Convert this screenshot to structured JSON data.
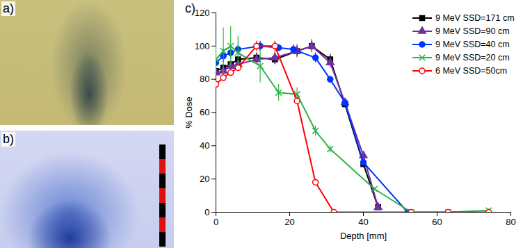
{
  "panels": [
    {
      "label": "a)"
    },
    {
      "label": "b)"
    }
  ],
  "chart_data": {
    "type": "line",
    "title": "c)",
    "x_label": "Depth [mm]",
    "y_label": "% Dose",
    "xlim": [
      0,
      80
    ],
    "xticks": [
      0,
      20,
      40,
      60,
      80
    ],
    "ylim": [
      0,
      120
    ],
    "yticks": [
      0,
      20,
      40,
      60,
      80,
      100,
      120
    ],
    "grid": false,
    "legend": "top-right",
    "series": [
      {
        "name": "9 MeV SSD=171 cm",
        "color": "#000000",
        "marker": "square",
        "x": [
          0,
          2,
          4,
          6,
          11,
          16,
          22,
          26,
          31,
          35,
          40,
          44
        ],
        "values": [
          85,
          87,
          89,
          92,
          93,
          92,
          97,
          100,
          92,
          65,
          29,
          3
        ],
        "errors": [
          2,
          2,
          2,
          2,
          3,
          3,
          3,
          3,
          3,
          2,
          2,
          1
        ]
      },
      {
        "name": "9 MeV SSD=90 cm",
        "color": "#7030a0",
        "marker": "triangle",
        "x": [
          0,
          2,
          4,
          6,
          11,
          16,
          22,
          26,
          31,
          35,
          40,
          44
        ],
        "values": [
          84,
          85,
          88,
          89,
          92,
          93,
          97,
          100,
          90,
          66,
          34,
          3
        ],
        "errors": [
          2,
          2,
          2,
          2,
          3,
          4,
          4,
          4,
          3,
          2,
          2,
          1
        ]
      },
      {
        "name": "9 MeV SSD=40 cm",
        "color": "#0033ff",
        "marker": "circle",
        "x": [
          0,
          2,
          4,
          6,
          12,
          17,
          21,
          27,
          31,
          35,
          40,
          52
        ],
        "values": [
          90,
          94,
          96,
          98,
          100,
          99,
          98,
          93,
          80,
          66,
          30,
          0
        ],
        "errors": [
          3,
          4,
          4,
          3,
          3,
          2,
          3,
          3,
          2,
          2,
          1,
          0
        ]
      },
      {
        "name": "9 MeV SSD=20 cm",
        "color": "#2db34a",
        "marker": "x",
        "x": [
          0,
          2,
          4,
          6,
          12,
          17,
          22,
          27,
          31,
          43,
          53,
          63,
          74
        ],
        "values": [
          92,
          97,
          100,
          96,
          88,
          72,
          71,
          49,
          38,
          14,
          0,
          0,
          1
        ],
        "errors": [
          8,
          14,
          12,
          10,
          10,
          5,
          4,
          3,
          2,
          1,
          0,
          0,
          1
        ]
      },
      {
        "name": "6 MeV SSD=50cm",
        "color": "#ff0000",
        "marker": "open_circle",
        "x": [
          0,
          2,
          4,
          6,
          11,
          16,
          22,
          27,
          32,
          53,
          63,
          74
        ],
        "values": [
          77,
          81,
          84,
          87,
          100,
          100,
          67,
          18,
          0,
          0,
          0,
          0
        ],
        "errors": [
          2,
          2,
          2,
          2,
          3,
          3,
          2,
          1,
          0,
          0,
          0,
          0
        ]
      }
    ]
  }
}
